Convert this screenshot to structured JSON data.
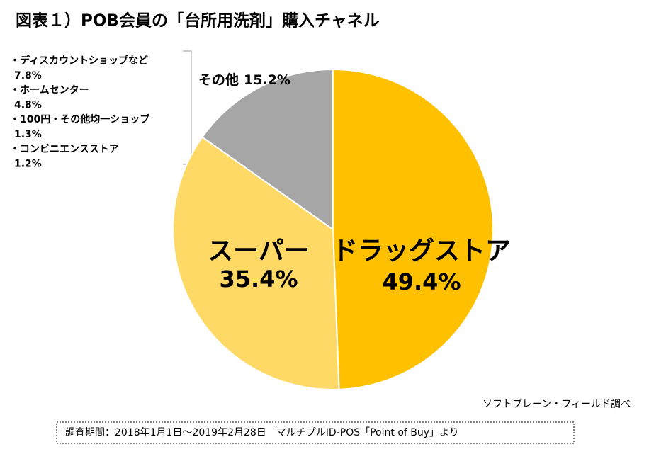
{
  "chart_data": {
    "type": "pie",
    "title": "図表１）POB会員の「台所用洗剤」購入チャネル",
    "categories": [
      "ドラッグストア",
      "スーパー",
      "その他"
    ],
    "values": [
      49.4,
      35.4,
      15.2
    ],
    "value_labels": [
      "49.4%",
      "35.4%",
      "15.2%"
    ],
    "colors": [
      "#FFC000",
      "#FFD966",
      "#A6A6A6"
    ],
    "annotations": [
      "・ディスカウントショップなど",
      "7.8%",
      "・ホームセンター",
      "4.8%",
      "・100円・その他均一ショップ",
      "1.3%",
      "・コンビニエンスストア",
      "1.2%"
    ],
    "source": "ソフトブレーン・フィールド調べ",
    "note": "調査期間：2018年1月1日～2019年2月28日　マルチプルID-POS「Point of Buy」より"
  }
}
